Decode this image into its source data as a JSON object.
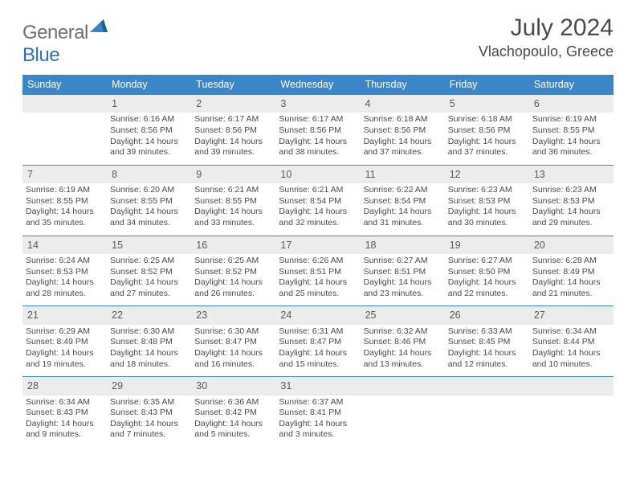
{
  "logo": {
    "text1": "General",
    "text2": "Blue"
  },
  "title": "July 2024",
  "location": "Vlachopoulo, Greece",
  "colors": {
    "header_bg": "#3a86c8",
    "header_text": "#ffffff",
    "daynum_bg": "#ececec",
    "border_top": "#3a86c8",
    "text": "#4a4a4a",
    "logo_gray": "#6f6f6f",
    "logo_blue": "#2c73b8"
  },
  "day_headers": [
    "Sunday",
    "Monday",
    "Tuesday",
    "Wednesday",
    "Thursday",
    "Friday",
    "Saturday"
  ],
  "weeks": [
    {
      "nums": [
        "",
        "1",
        "2",
        "3",
        "4",
        "5",
        "6"
      ],
      "cells": [
        null,
        {
          "sunrise": "Sunrise: 6:16 AM",
          "sunset": "Sunset: 8:56 PM",
          "daylight": "Daylight: 14 hours and 39 minutes."
        },
        {
          "sunrise": "Sunrise: 6:17 AM",
          "sunset": "Sunset: 8:56 PM",
          "daylight": "Daylight: 14 hours and 39 minutes."
        },
        {
          "sunrise": "Sunrise: 6:17 AM",
          "sunset": "Sunset: 8:56 PM",
          "daylight": "Daylight: 14 hours and 38 minutes."
        },
        {
          "sunrise": "Sunrise: 6:18 AM",
          "sunset": "Sunset: 8:56 PM",
          "daylight": "Daylight: 14 hours and 37 minutes."
        },
        {
          "sunrise": "Sunrise: 6:18 AM",
          "sunset": "Sunset: 8:56 PM",
          "daylight": "Daylight: 14 hours and 37 minutes."
        },
        {
          "sunrise": "Sunrise: 6:19 AM",
          "sunset": "Sunset: 8:55 PM",
          "daylight": "Daylight: 14 hours and 36 minutes."
        }
      ]
    },
    {
      "nums": [
        "7",
        "8",
        "9",
        "10",
        "11",
        "12",
        "13"
      ],
      "cells": [
        {
          "sunrise": "Sunrise: 6:19 AM",
          "sunset": "Sunset: 8:55 PM",
          "daylight": "Daylight: 14 hours and 35 minutes."
        },
        {
          "sunrise": "Sunrise: 6:20 AM",
          "sunset": "Sunset: 8:55 PM",
          "daylight": "Daylight: 14 hours and 34 minutes."
        },
        {
          "sunrise": "Sunrise: 6:21 AM",
          "sunset": "Sunset: 8:55 PM",
          "daylight": "Daylight: 14 hours and 33 minutes."
        },
        {
          "sunrise": "Sunrise: 6:21 AM",
          "sunset": "Sunset: 8:54 PM",
          "daylight": "Daylight: 14 hours and 32 minutes."
        },
        {
          "sunrise": "Sunrise: 6:22 AM",
          "sunset": "Sunset: 8:54 PM",
          "daylight": "Daylight: 14 hours and 31 minutes."
        },
        {
          "sunrise": "Sunrise: 6:23 AM",
          "sunset": "Sunset: 8:53 PM",
          "daylight": "Daylight: 14 hours and 30 minutes."
        },
        {
          "sunrise": "Sunrise: 6:23 AM",
          "sunset": "Sunset: 8:53 PM",
          "daylight": "Daylight: 14 hours and 29 minutes."
        }
      ]
    },
    {
      "nums": [
        "14",
        "15",
        "16",
        "17",
        "18",
        "19",
        "20"
      ],
      "cells": [
        {
          "sunrise": "Sunrise: 6:24 AM",
          "sunset": "Sunset: 8:53 PM",
          "daylight": "Daylight: 14 hours and 28 minutes."
        },
        {
          "sunrise": "Sunrise: 6:25 AM",
          "sunset": "Sunset: 8:52 PM",
          "daylight": "Daylight: 14 hours and 27 minutes."
        },
        {
          "sunrise": "Sunrise: 6:25 AM",
          "sunset": "Sunset: 8:52 PM",
          "daylight": "Daylight: 14 hours and 26 minutes."
        },
        {
          "sunrise": "Sunrise: 6:26 AM",
          "sunset": "Sunset: 8:51 PM",
          "daylight": "Daylight: 14 hours and 25 minutes."
        },
        {
          "sunrise": "Sunrise: 6:27 AM",
          "sunset": "Sunset: 8:51 PM",
          "daylight": "Daylight: 14 hours and 23 minutes."
        },
        {
          "sunrise": "Sunrise: 6:27 AM",
          "sunset": "Sunset: 8:50 PM",
          "daylight": "Daylight: 14 hours and 22 minutes."
        },
        {
          "sunrise": "Sunrise: 6:28 AM",
          "sunset": "Sunset: 8:49 PM",
          "daylight": "Daylight: 14 hours and 21 minutes."
        }
      ]
    },
    {
      "nums": [
        "21",
        "22",
        "23",
        "24",
        "25",
        "26",
        "27"
      ],
      "cells": [
        {
          "sunrise": "Sunrise: 6:29 AM",
          "sunset": "Sunset: 8:49 PM",
          "daylight": "Daylight: 14 hours and 19 minutes."
        },
        {
          "sunrise": "Sunrise: 6:30 AM",
          "sunset": "Sunset: 8:48 PM",
          "daylight": "Daylight: 14 hours and 18 minutes."
        },
        {
          "sunrise": "Sunrise: 6:30 AM",
          "sunset": "Sunset: 8:47 PM",
          "daylight": "Daylight: 14 hours and 16 minutes."
        },
        {
          "sunrise": "Sunrise: 6:31 AM",
          "sunset": "Sunset: 8:47 PM",
          "daylight": "Daylight: 14 hours and 15 minutes."
        },
        {
          "sunrise": "Sunrise: 6:32 AM",
          "sunset": "Sunset: 8:46 PM",
          "daylight": "Daylight: 14 hours and 13 minutes."
        },
        {
          "sunrise": "Sunrise: 6:33 AM",
          "sunset": "Sunset: 8:45 PM",
          "daylight": "Daylight: 14 hours and 12 minutes."
        },
        {
          "sunrise": "Sunrise: 6:34 AM",
          "sunset": "Sunset: 8:44 PM",
          "daylight": "Daylight: 14 hours and 10 minutes."
        }
      ]
    },
    {
      "nums": [
        "28",
        "29",
        "30",
        "31",
        "",
        "",
        ""
      ],
      "cells": [
        {
          "sunrise": "Sunrise: 6:34 AM",
          "sunset": "Sunset: 8:43 PM",
          "daylight": "Daylight: 14 hours and 9 minutes."
        },
        {
          "sunrise": "Sunrise: 6:35 AM",
          "sunset": "Sunset: 8:43 PM",
          "daylight": "Daylight: 14 hours and 7 minutes."
        },
        {
          "sunrise": "Sunrise: 6:36 AM",
          "sunset": "Sunset: 8:42 PM",
          "daylight": "Daylight: 14 hours and 5 minutes."
        },
        {
          "sunrise": "Sunrise: 6:37 AM",
          "sunset": "Sunset: 8:41 PM",
          "daylight": "Daylight: 14 hours and 3 minutes."
        },
        null,
        null,
        null
      ]
    }
  ]
}
